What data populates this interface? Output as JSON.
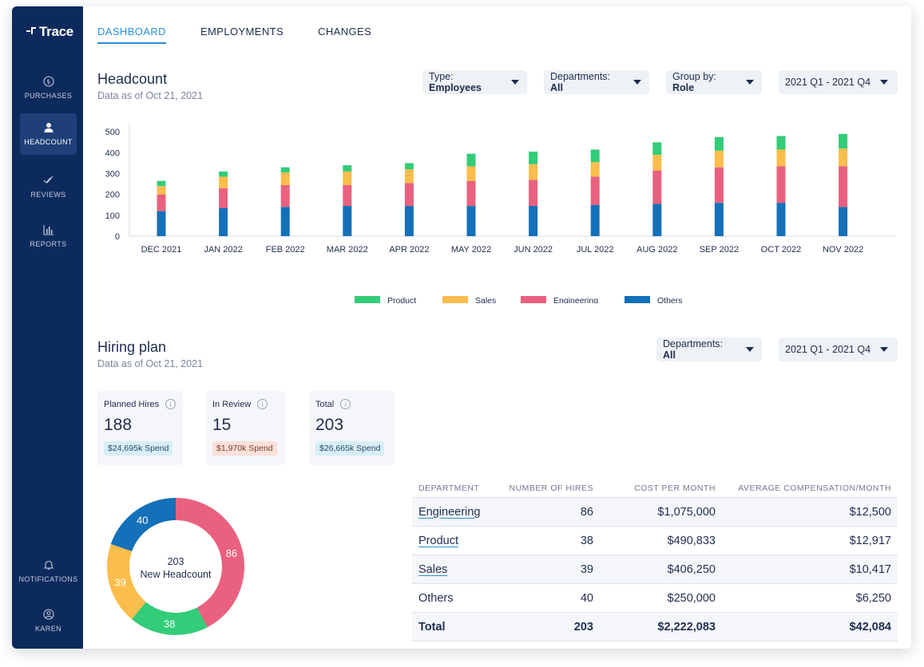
{
  "app": {
    "name": "Trace"
  },
  "sidebar": {
    "items": [
      {
        "label": "PURCHASES",
        "icon": "dollar-icon"
      },
      {
        "label": "HEADCOUNT",
        "icon": "person-icon",
        "active": true
      },
      {
        "label": "REVIEWS",
        "icon": "check-icon"
      },
      {
        "label": "REPORTS",
        "icon": "bar-chart-icon"
      }
    ],
    "bottom": [
      {
        "label": "NOTIFICATIONS",
        "icon": "bell-icon"
      },
      {
        "label": "KAREN",
        "icon": "user-circle-icon"
      }
    ]
  },
  "tabs": [
    {
      "label": "DASHBOARD",
      "active": true
    },
    {
      "label": "EMPLOYMENTS"
    },
    {
      "label": "CHANGES"
    }
  ],
  "headcount": {
    "title": "Headcount",
    "subtitle": "Data as of Oct 21, 2021",
    "filters": {
      "type_prefix": "Type: ",
      "type_value": "Employees",
      "dept_prefix": "Departments: ",
      "dept_value": "All",
      "group_prefix": "Group by: ",
      "group_value": "Role",
      "period": "2021 Q1 - 2021 Q4"
    }
  },
  "chart_data": {
    "type": "bar",
    "stacked": true,
    "categories": [
      "DEC 2021",
      "JAN 2022",
      "FEB 2022",
      "MAR 2022",
      "APR 2022",
      "MAY 2022",
      "JUN 2022",
      "JUL 2022",
      "AUG 2022",
      "SEP 2022",
      "OCT 2022",
      "NOV 2022"
    ],
    "series": [
      {
        "name": "Others",
        "color": "#1470b8",
        "values": [
          120,
          135,
          140,
          145,
          145,
          145,
          145,
          150,
          155,
          160,
          160,
          140
        ]
      },
      {
        "name": "Engineering",
        "color": "#e9617e",
        "values": [
          80,
          95,
          105,
          100,
          110,
          120,
          125,
          135,
          160,
          170,
          175,
          195
        ]
      },
      {
        "name": "Sales",
        "color": "#fbbd4b",
        "values": [
          40,
          55,
          60,
          65,
          65,
          70,
          75,
          70,
          75,
          80,
          80,
          85
        ]
      },
      {
        "name": "Product",
        "color": "#33cc78",
        "values": [
          25,
          25,
          25,
          30,
          30,
          60,
          60,
          60,
          60,
          65,
          65,
          70
        ]
      }
    ],
    "legend": [
      "Product",
      "Sales",
      "Engineering",
      "Others"
    ],
    "yticks": [
      0,
      100,
      200,
      300,
      400,
      500
    ],
    "ylim": [
      0,
      520
    ],
    "title": "",
    "xlabel": "",
    "ylabel": ""
  },
  "hiring": {
    "title": "Hiring plan",
    "subtitle": "Data as of Oct 21, 2021",
    "filters": {
      "dept_prefix": "Departments: ",
      "dept_value": "All",
      "period": "2021 Q1 - 2021 Q4"
    },
    "kpis": [
      {
        "label": "Planned Hires",
        "value": "188",
        "badge": "$24,695k Spend",
        "badge_bg": "#d7eef6",
        "badge_color": "#2a4a66"
      },
      {
        "label": "In Review",
        "value": "15",
        "badge": "$1,970k Spend",
        "badge_bg": "#fbe0d9",
        "badge_color": "#7a3a2a"
      },
      {
        "label": "Total",
        "value": "203",
        "badge": "$26,665k Spend",
        "badge_bg": "#d7eef6",
        "badge_color": "#2a4a66"
      }
    ],
    "donut": {
      "center_value": "203",
      "center_label": "New Headcount",
      "segments": [
        {
          "name": "Engineering",
          "value": 86,
          "color": "#e9617e"
        },
        {
          "name": "Product",
          "value": 38,
          "color": "#33cc78"
        },
        {
          "name": "Sales",
          "value": 39,
          "color": "#fbbd4b"
        },
        {
          "name": "Others",
          "value": 40,
          "color": "#1470b8"
        }
      ]
    },
    "table": {
      "headers": [
        "DEPARTMENT",
        "NUMBER OF HIRES",
        "COST PER MONTH",
        "AVERAGE COMPENSATION/MONTH"
      ],
      "rows": [
        {
          "dept": "Engineering",
          "hires": "86",
          "cost": "$1,075,000",
          "avg": "$12,500",
          "link": true
        },
        {
          "dept": "Product",
          "hires": "38",
          "cost": "$490,833",
          "avg": "$12,917",
          "link": true
        },
        {
          "dept": "Sales",
          "hires": "39",
          "cost": "$406,250",
          "avg": "$10,417",
          "link": true
        },
        {
          "dept": "Others",
          "hires": "40",
          "cost": "$250,000",
          "avg": "$6,250",
          "link": false
        }
      ],
      "total": {
        "dept": "Total",
        "hires": "203",
        "cost": "$2,222,083",
        "avg": "$42,084"
      }
    }
  }
}
